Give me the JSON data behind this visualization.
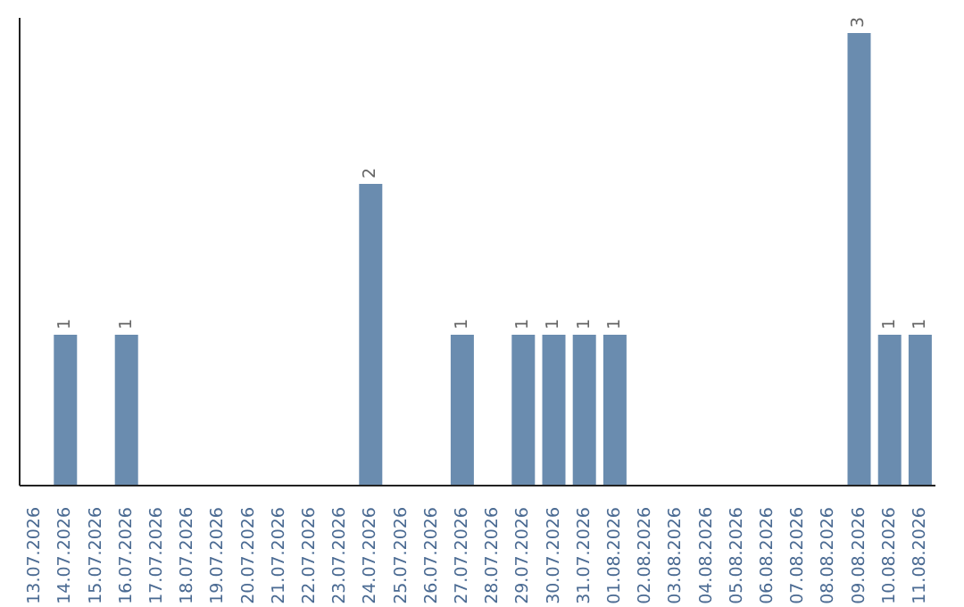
{
  "chart_data": {
    "type": "bar",
    "categories": [
      "13.07.2026",
      "14.07.2026",
      "15.07.2026",
      "16.07.2026",
      "17.07.2026",
      "18.07.2026",
      "19.07.2026",
      "20.07.2026",
      "21.07.2026",
      "22.07.2026",
      "23.07.2026",
      "24.07.2026",
      "25.07.2026",
      "26.07.2026",
      "27.07.2026",
      "28.07.2026",
      "29.07.2026",
      "30.07.2026",
      "31.07.2026",
      "01.08.2026",
      "02.08.2026",
      "03.08.2026",
      "04.08.2026",
      "05.08.2026",
      "06.08.2026",
      "07.08.2026",
      "08.08.2026",
      "09.08.2026",
      "10.08.2026",
      "11.08.2026"
    ],
    "values": [
      0,
      1,
      0,
      1,
      0,
      0,
      0,
      0,
      0,
      0,
      0,
      2,
      0,
      0,
      1,
      0,
      1,
      1,
      1,
      1,
      0,
      0,
      0,
      0,
      0,
      0,
      0,
      3,
      1,
      1
    ],
    "value_labels": [
      null,
      "1",
      null,
      "1",
      null,
      null,
      null,
      null,
      null,
      null,
      null,
      "2",
      null,
      null,
      "1",
      null,
      "1",
      "1",
      "1",
      "1",
      null,
      null,
      null,
      null,
      null,
      null,
      null,
      "3",
      "1",
      "1"
    ],
    "color": "#6a8caf",
    "ylim": [
      0,
      3.1
    ],
    "tick_labels": "x",
    "grid": false
  }
}
